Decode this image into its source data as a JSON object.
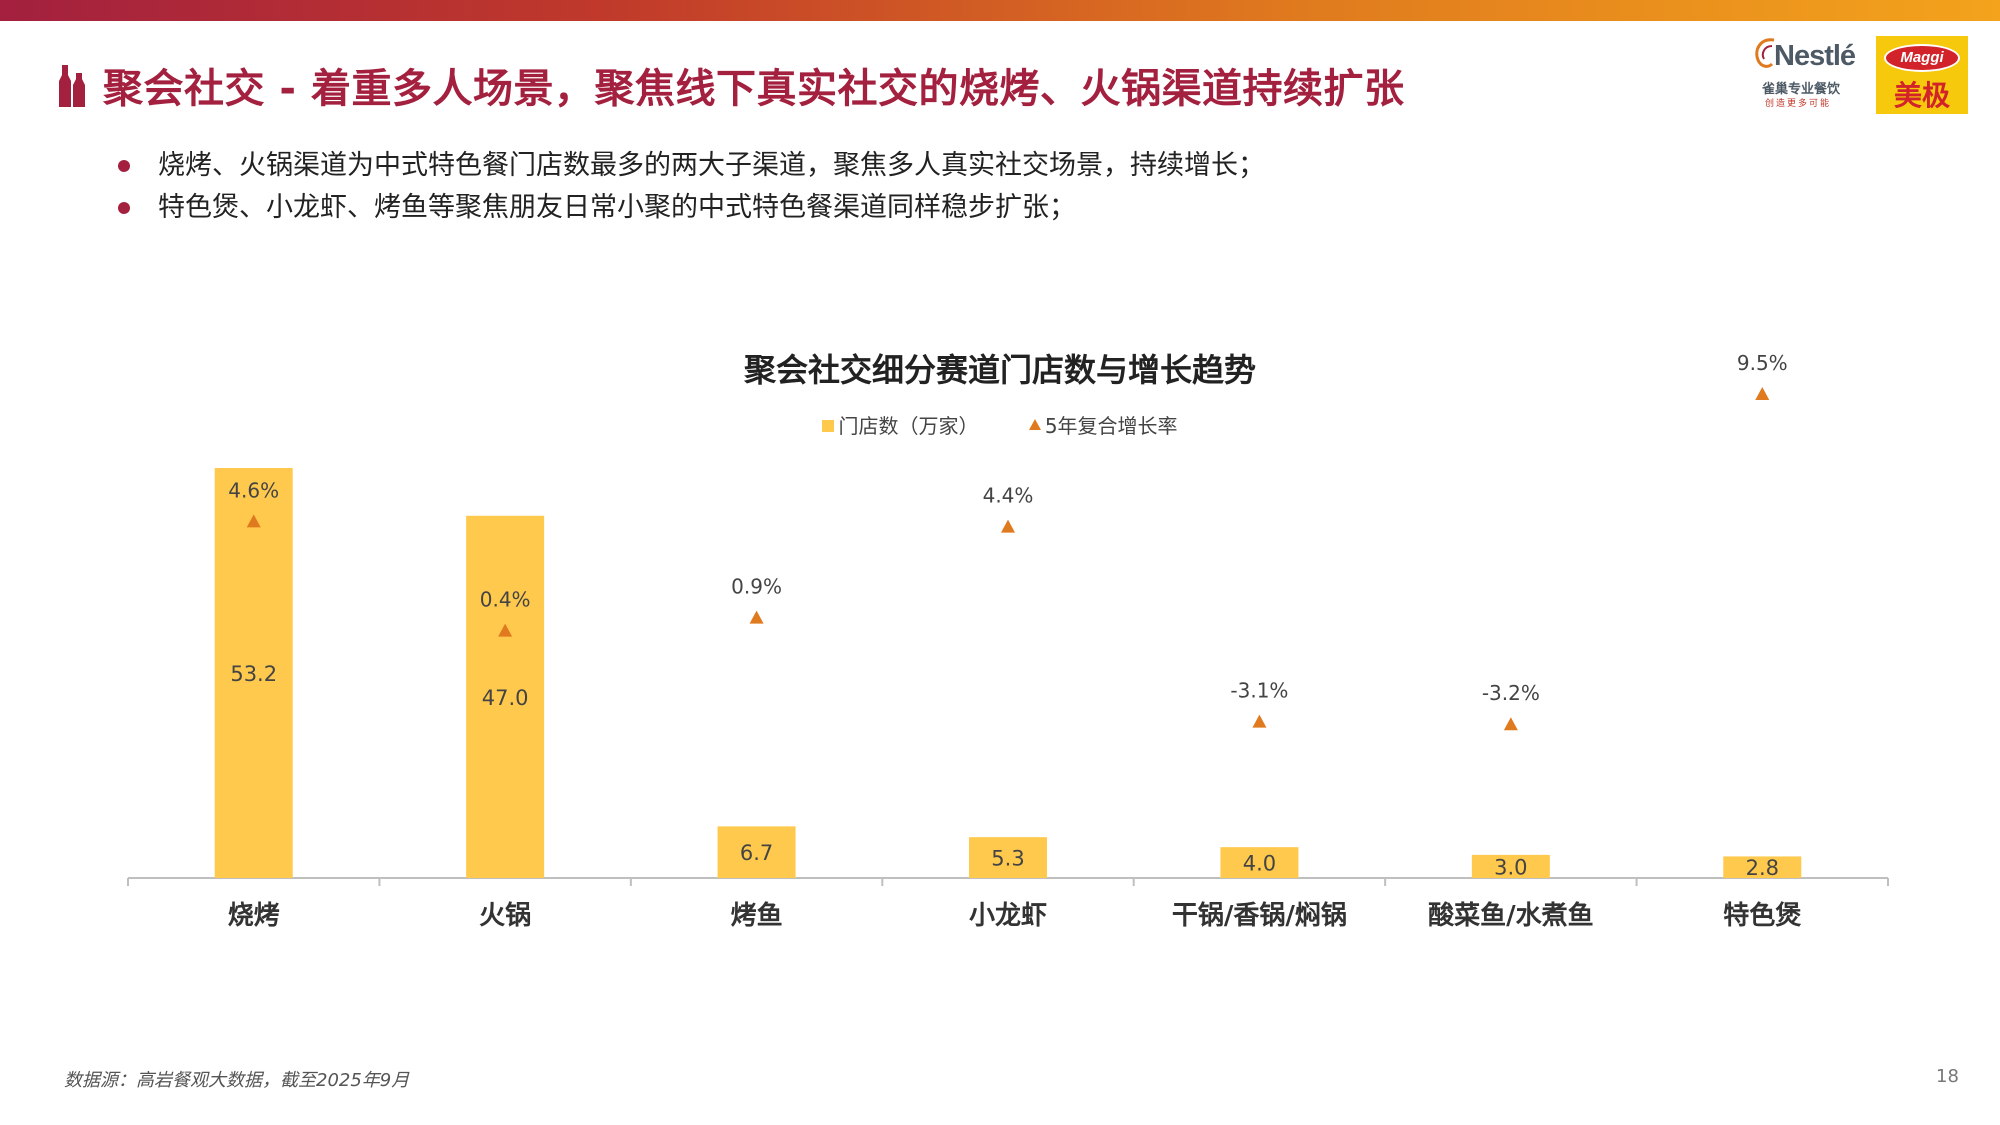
{
  "slide": {
    "title": "聚会社交 - 着重多人场景，聚焦线下真实社交的烧烤、火锅渠道持续扩张",
    "bullets": [
      "烧烤、火锅渠道为中式特色餐门店数最多的两大子渠道，聚焦多人真实社交场景，持续增长；",
      "特色煲、小龙虾、烤鱼等聚焦朋友日常小聚的中式特色餐渠道同样稳步扩张；"
    ],
    "source": "数据源：高岩餐观大数据，截至2025年9月",
    "page_number": "18"
  },
  "logos": {
    "nestle_text": "Nestlé",
    "nestle_sub": "雀巢专业餐饮",
    "nestle_slogan": "创造更多可能",
    "maggi_text": "Maggi",
    "maggi_cn": "美极"
  },
  "colors": {
    "accent": "#a3203f",
    "bar": "#ffc94d",
    "marker": "#e07a1e",
    "axis": "#bfbfbf"
  },
  "chart_data": {
    "type": "bar",
    "title": "聚会社交细分赛道门店数与增长趋势",
    "categories": [
      "烧烤",
      "火锅",
      "烤鱼",
      "小龙虾",
      "干锅/香锅/焖锅",
      "酸菜鱼/水煮鱼",
      "特色煲"
    ],
    "series": [
      {
        "name": "门店数（万家）",
        "type": "bar",
        "values": [
          53.2,
          47.0,
          6.7,
          5.3,
          4.0,
          3.0,
          2.8
        ],
        "labels": [
          "53.2",
          "47.0",
          "6.7",
          "5.3",
          "4.0",
          "3.0",
          "2.8"
        ]
      },
      {
        "name": "5年复合增长率",
        "type": "marker",
        "values": [
          4.6,
          0.4,
          0.9,
          4.4,
          -3.1,
          -3.2,
          9.5
        ],
        "labels": [
          "4.6%",
          "0.4%",
          "0.9%",
          "4.4%",
          "-3.1%",
          "-3.2%",
          "9.5%"
        ]
      }
    ],
    "legend_position": "top-center",
    "grid": false
  }
}
